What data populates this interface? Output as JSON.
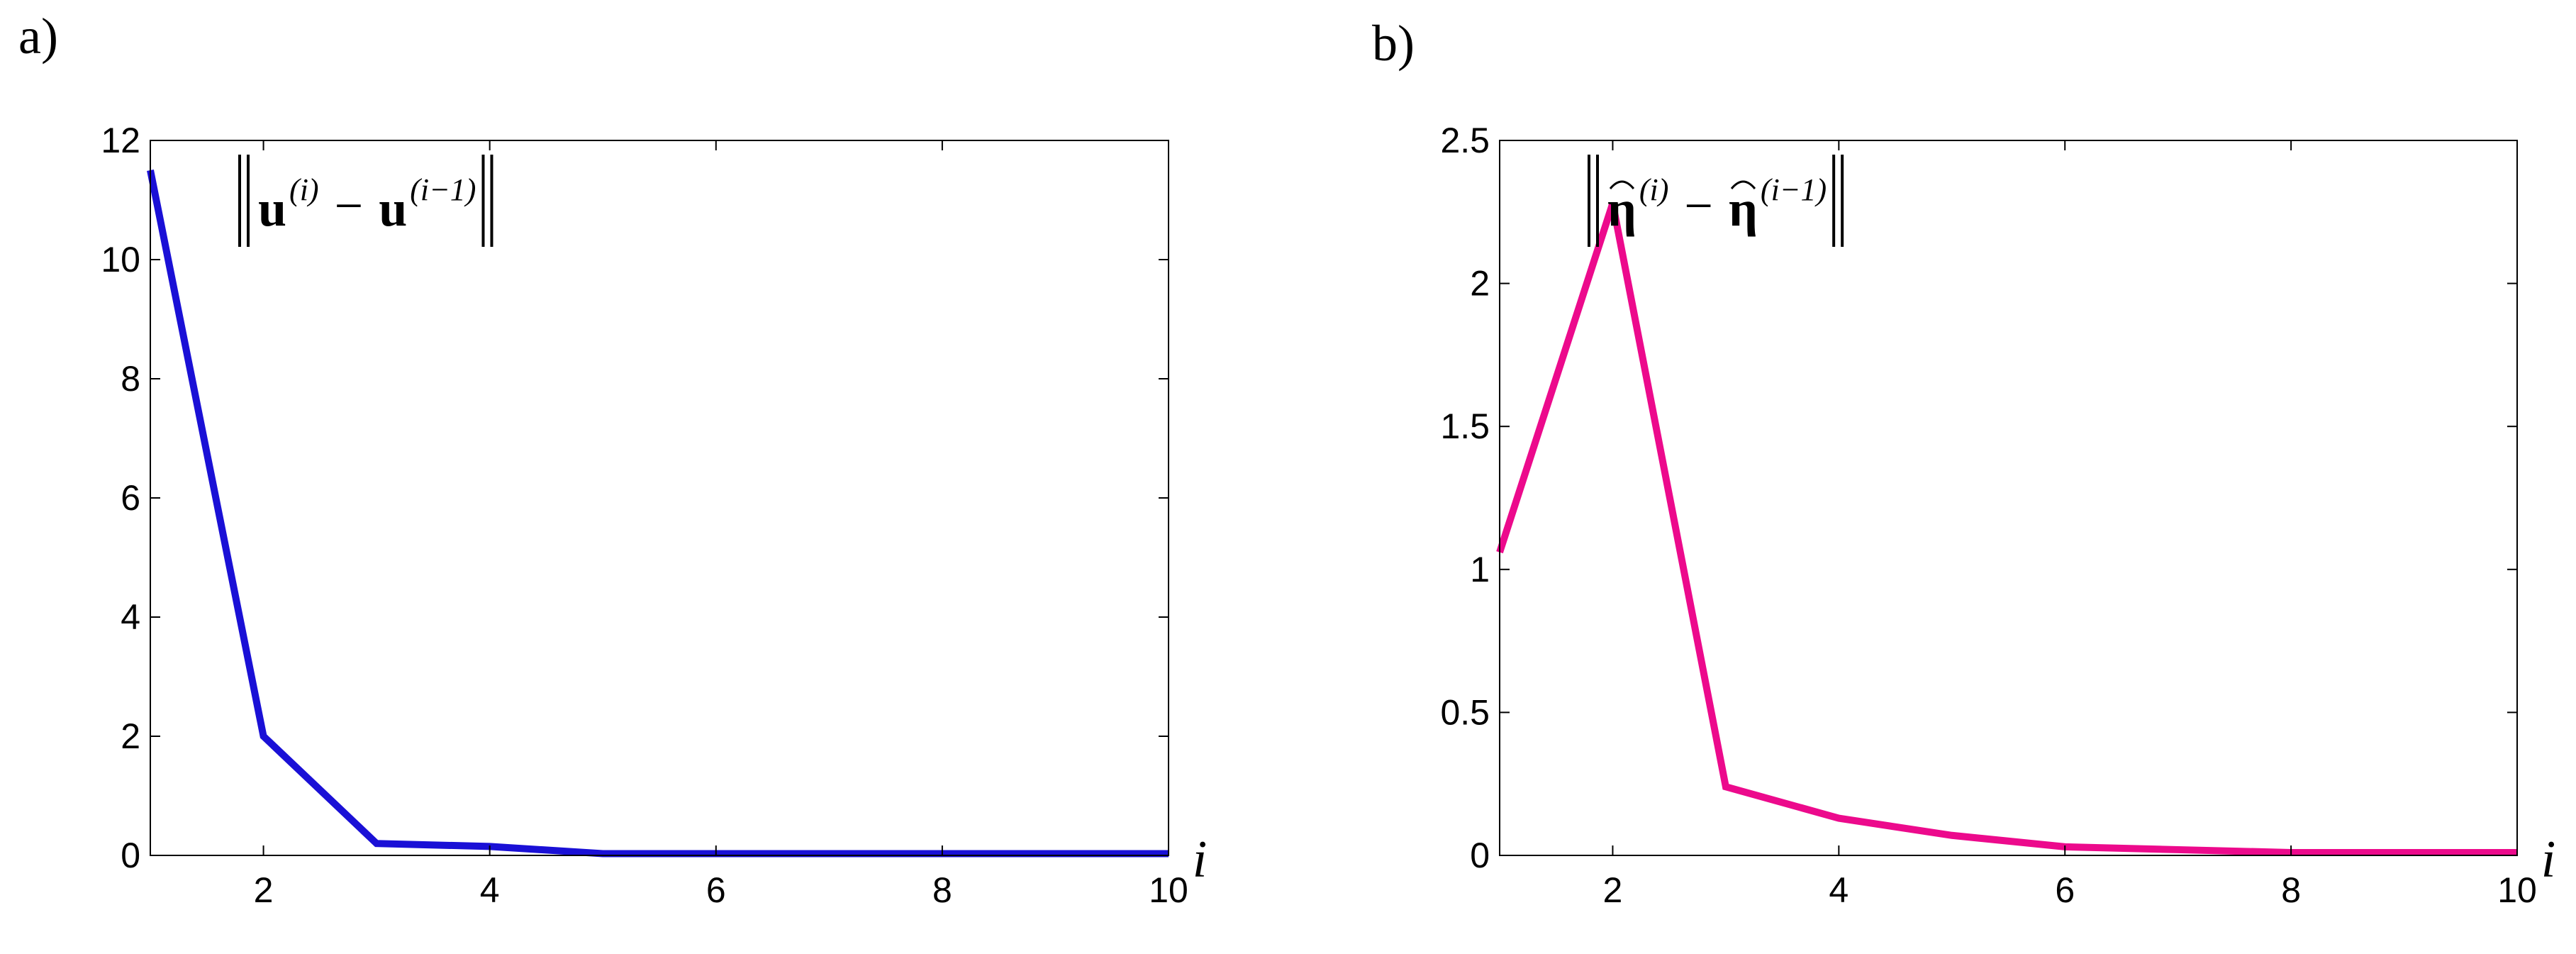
{
  "panels": [
    {
      "label": "a)"
    },
    {
      "label": "b)"
    }
  ],
  "chart_data": [
    {
      "type": "line",
      "xlabel": "i",
      "ylabel": "",
      "xlim": [
        1,
        10
      ],
      "ylim": [
        0,
        12
      ],
      "xticks": [
        2,
        4,
        6,
        8,
        10
      ],
      "yticks": [
        0,
        2,
        4,
        6,
        8,
        10,
        12
      ],
      "grid": false,
      "annotation": {
        "base": "u",
        "sup1": "(i)",
        "sup2": "(i−1)",
        "placement": "top-left inside axes"
      },
      "series": [
        {
          "color": "#1a10d6",
          "x": [
            1,
            2,
            3,
            4,
            5,
            6,
            7,
            8,
            9,
            10
          ],
          "y": [
            11.5,
            2.0,
            0.2,
            0.15,
            0.03,
            0.03,
            0.03,
            0.03,
            0.03,
            0.03
          ]
        }
      ]
    },
    {
      "type": "line",
      "xlabel": "i",
      "ylabel": "",
      "xlim": [
        1,
        10
      ],
      "ylim": [
        0,
        2.5
      ],
      "xticks": [
        2,
        4,
        6,
        8,
        10
      ],
      "yticks": [
        0,
        0.5,
        1,
        1.5,
        2,
        2.5
      ],
      "grid": false,
      "annotation": {
        "base": "η",
        "sup1": "(i)",
        "sup2": "(i−1)",
        "placement": "top-left inside axes"
      },
      "series": [
        {
          "color": "#ec0a8c",
          "x": [
            1,
            2,
            3,
            4,
            5,
            6,
            7,
            8,
            9,
            10
          ],
          "y": [
            1.06,
            2.28,
            0.24,
            0.13,
            0.07,
            0.03,
            0.02,
            0.01,
            0.01,
            0.01
          ]
        }
      ]
    }
  ]
}
